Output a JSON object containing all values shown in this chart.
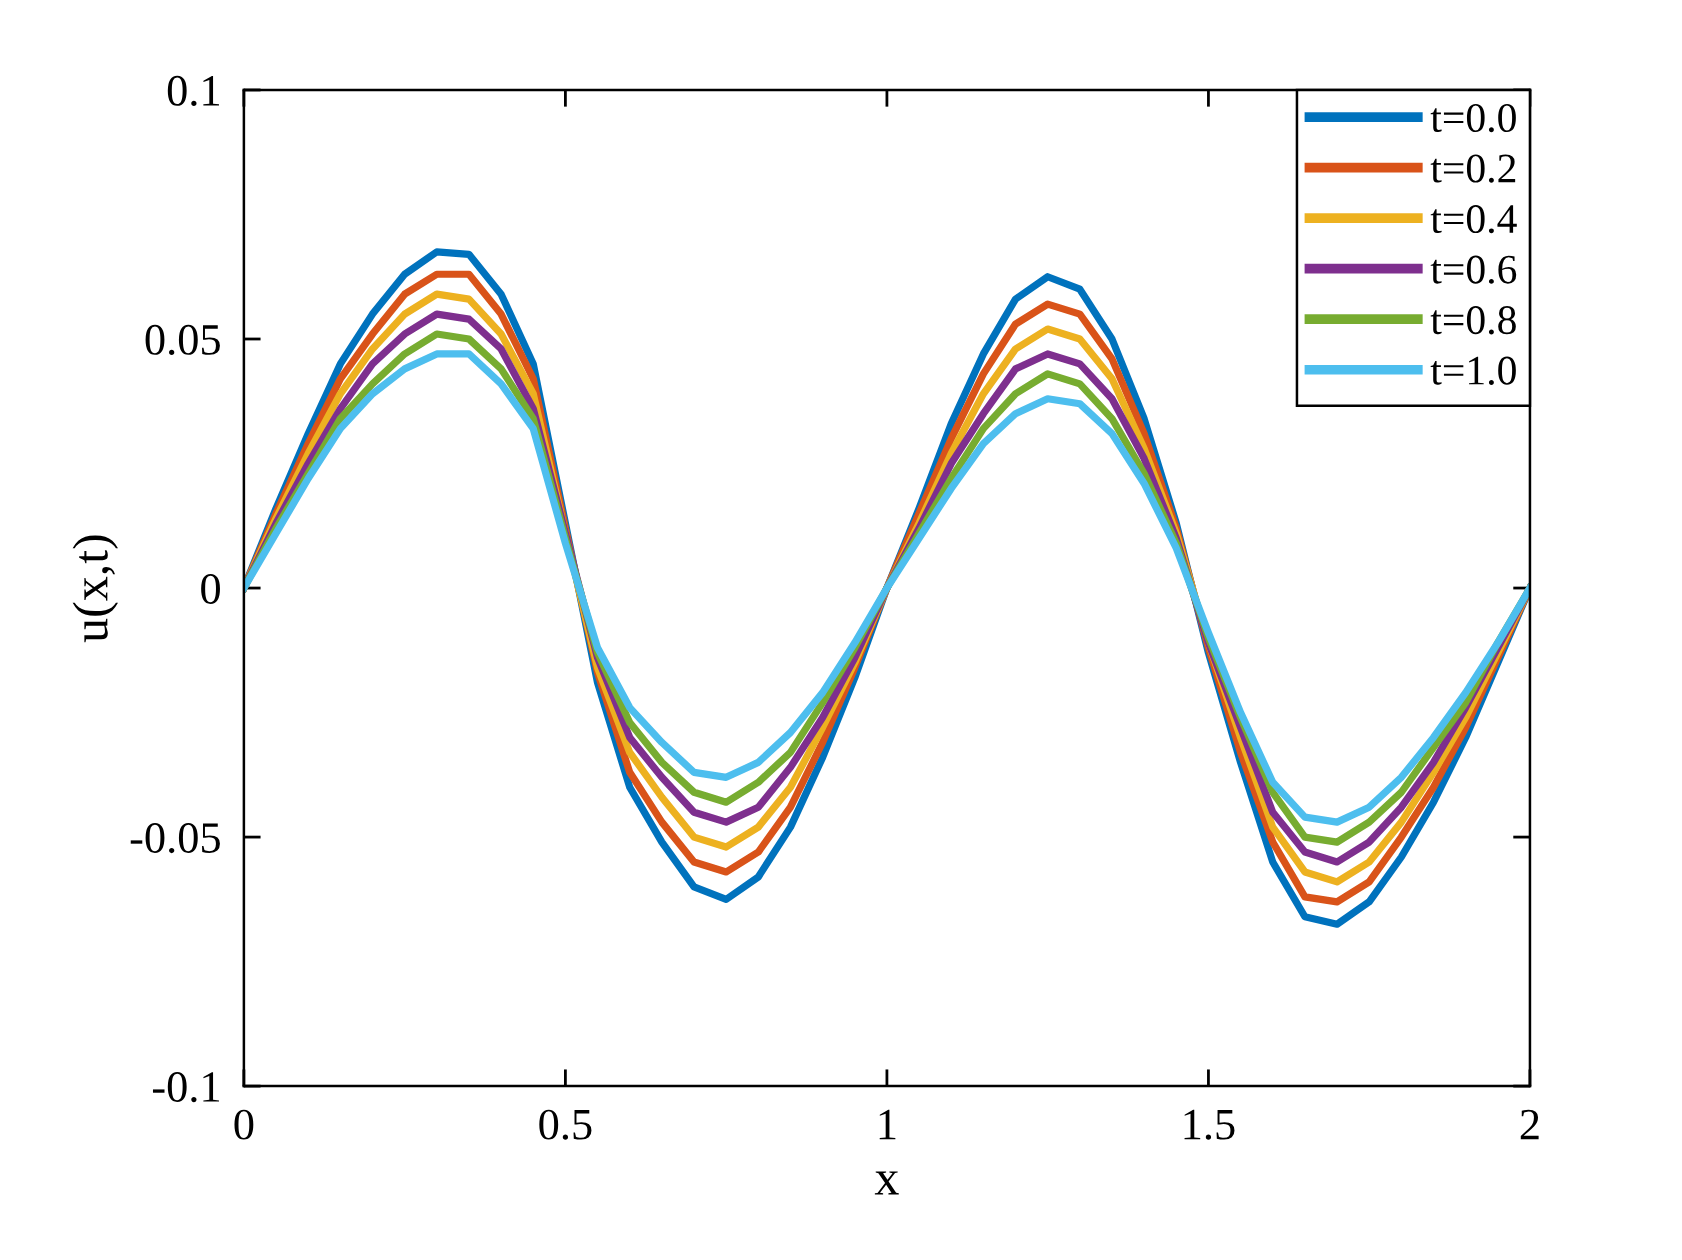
{
  "chart_data": {
    "type": "line",
    "xlabel": "x",
    "ylabel": "u(x,t)",
    "x": [
      0,
      0.05,
      0.1,
      0.15,
      0.2,
      0.25,
      0.3,
      0.35,
      0.4,
      0.45,
      0.5,
      0.55,
      0.6,
      0.65,
      0.7,
      0.75,
      0.8,
      0.85,
      0.9,
      0.95,
      1,
      1.05,
      1.1,
      1.15,
      1.2,
      1.25,
      1.3,
      1.35,
      1.4,
      1.45,
      1.5,
      1.55,
      1.6,
      1.65,
      1.7,
      1.75,
      1.8,
      1.85,
      1.9,
      1.95,
      2
    ],
    "series": [
      {
        "name": "t=0.0",
        "color": "#0072bd",
        "values": [
          0,
          0.016,
          0.031,
          0.045,
          0.055,
          0.063,
          0.0675,
          0.067,
          0.059,
          0.045,
          0.013,
          -0.019,
          -0.04,
          -0.051,
          -0.06,
          -0.0625,
          -0.058,
          -0.048,
          -0.034,
          -0.018,
          0,
          0.016,
          0.033,
          0.047,
          0.058,
          0.0625,
          0.06,
          0.05,
          0.034,
          0.013,
          -0.013,
          -0.035,
          -0.055,
          -0.066,
          -0.0675,
          -0.063,
          -0.054,
          -0.043,
          -0.03,
          -0.015,
          0
        ]
      },
      {
        "name": "t=0.2",
        "color": "#d95319",
        "values": [
          0,
          0.015,
          0.029,
          0.042,
          0.051,
          0.059,
          0.063,
          0.063,
          0.055,
          0.042,
          0.012,
          -0.017,
          -0.037,
          -0.047,
          -0.055,
          -0.057,
          -0.053,
          -0.044,
          -0.031,
          -0.016,
          0,
          0.015,
          0.03,
          0.043,
          0.053,
          0.057,
          0.055,
          0.046,
          0.031,
          0.012,
          -0.012,
          -0.033,
          -0.051,
          -0.062,
          -0.063,
          -0.059,
          -0.05,
          -0.04,
          -0.028,
          -0.014,
          0
        ]
      },
      {
        "name": "t=0.4",
        "color": "#edb120",
        "values": [
          0,
          0.014,
          0.027,
          0.039,
          0.048,
          0.055,
          0.059,
          0.058,
          0.051,
          0.039,
          0.011,
          -0.016,
          -0.033,
          -0.042,
          -0.05,
          -0.052,
          -0.048,
          -0.04,
          -0.028,
          -0.015,
          0,
          0.013,
          0.027,
          0.039,
          0.048,
          0.052,
          0.05,
          0.042,
          0.028,
          0.011,
          -0.011,
          -0.03,
          -0.048,
          -0.057,
          -0.059,
          -0.055,
          -0.047,
          -0.037,
          -0.026,
          -0.013,
          0
        ]
      },
      {
        "name": "t=0.6",
        "color": "#7e2f8e",
        "values": [
          0,
          0.013,
          0.025,
          0.036,
          0.045,
          0.051,
          0.055,
          0.054,
          0.048,
          0.036,
          0.011,
          -0.014,
          -0.03,
          -0.038,
          -0.045,
          -0.047,
          -0.044,
          -0.036,
          -0.026,
          -0.014,
          0,
          0.012,
          0.025,
          0.035,
          0.044,
          0.047,
          0.045,
          0.038,
          0.026,
          0.01,
          -0.011,
          -0.028,
          -0.045,
          -0.053,
          -0.055,
          -0.051,
          -0.044,
          -0.035,
          -0.024,
          -0.012,
          0
        ]
      },
      {
        "name": "t=0.8",
        "color": "#77ac30",
        "values": [
          0,
          0.012,
          0.023,
          0.034,
          0.041,
          0.047,
          0.051,
          0.05,
          0.044,
          0.034,
          0.01,
          -0.013,
          -0.027,
          -0.035,
          -0.041,
          -0.043,
          -0.039,
          -0.033,
          -0.023,
          -0.012,
          0,
          0.011,
          0.022,
          0.032,
          0.039,
          0.043,
          0.041,
          0.034,
          0.023,
          0.009,
          -0.01,
          -0.026,
          -0.041,
          -0.05,
          -0.051,
          -0.047,
          -0.041,
          -0.032,
          -0.023,
          -0.011,
          0
        ]
      },
      {
        "name": "t=1.0",
        "color": "#4dbeee",
        "values": [
          0,
          0.011,
          0.022,
          0.032,
          0.039,
          0.044,
          0.047,
          0.047,
          0.041,
          0.032,
          0.009,
          -0.012,
          -0.024,
          -0.031,
          -0.037,
          -0.038,
          -0.035,
          -0.029,
          -0.021,
          -0.011,
          0,
          0.01,
          0.02,
          0.029,
          0.035,
          0.038,
          0.037,
          0.031,
          0.021,
          0.008,
          -0.009,
          -0.025,
          -0.039,
          -0.046,
          -0.047,
          -0.044,
          -0.038,
          -0.03,
          -0.021,
          -0.011,
          0
        ]
      }
    ],
    "xlim": [
      0,
      2
    ],
    "ylim": [
      -0.1,
      0.1
    ],
    "xticks": [
      0,
      0.5,
      1,
      1.5,
      2
    ],
    "yticks": [
      -0.1,
      -0.05,
      0,
      0.05,
      0.1
    ],
    "grid": false,
    "legend": "top right",
    "marker": "none",
    "line_style": "solid"
  }
}
